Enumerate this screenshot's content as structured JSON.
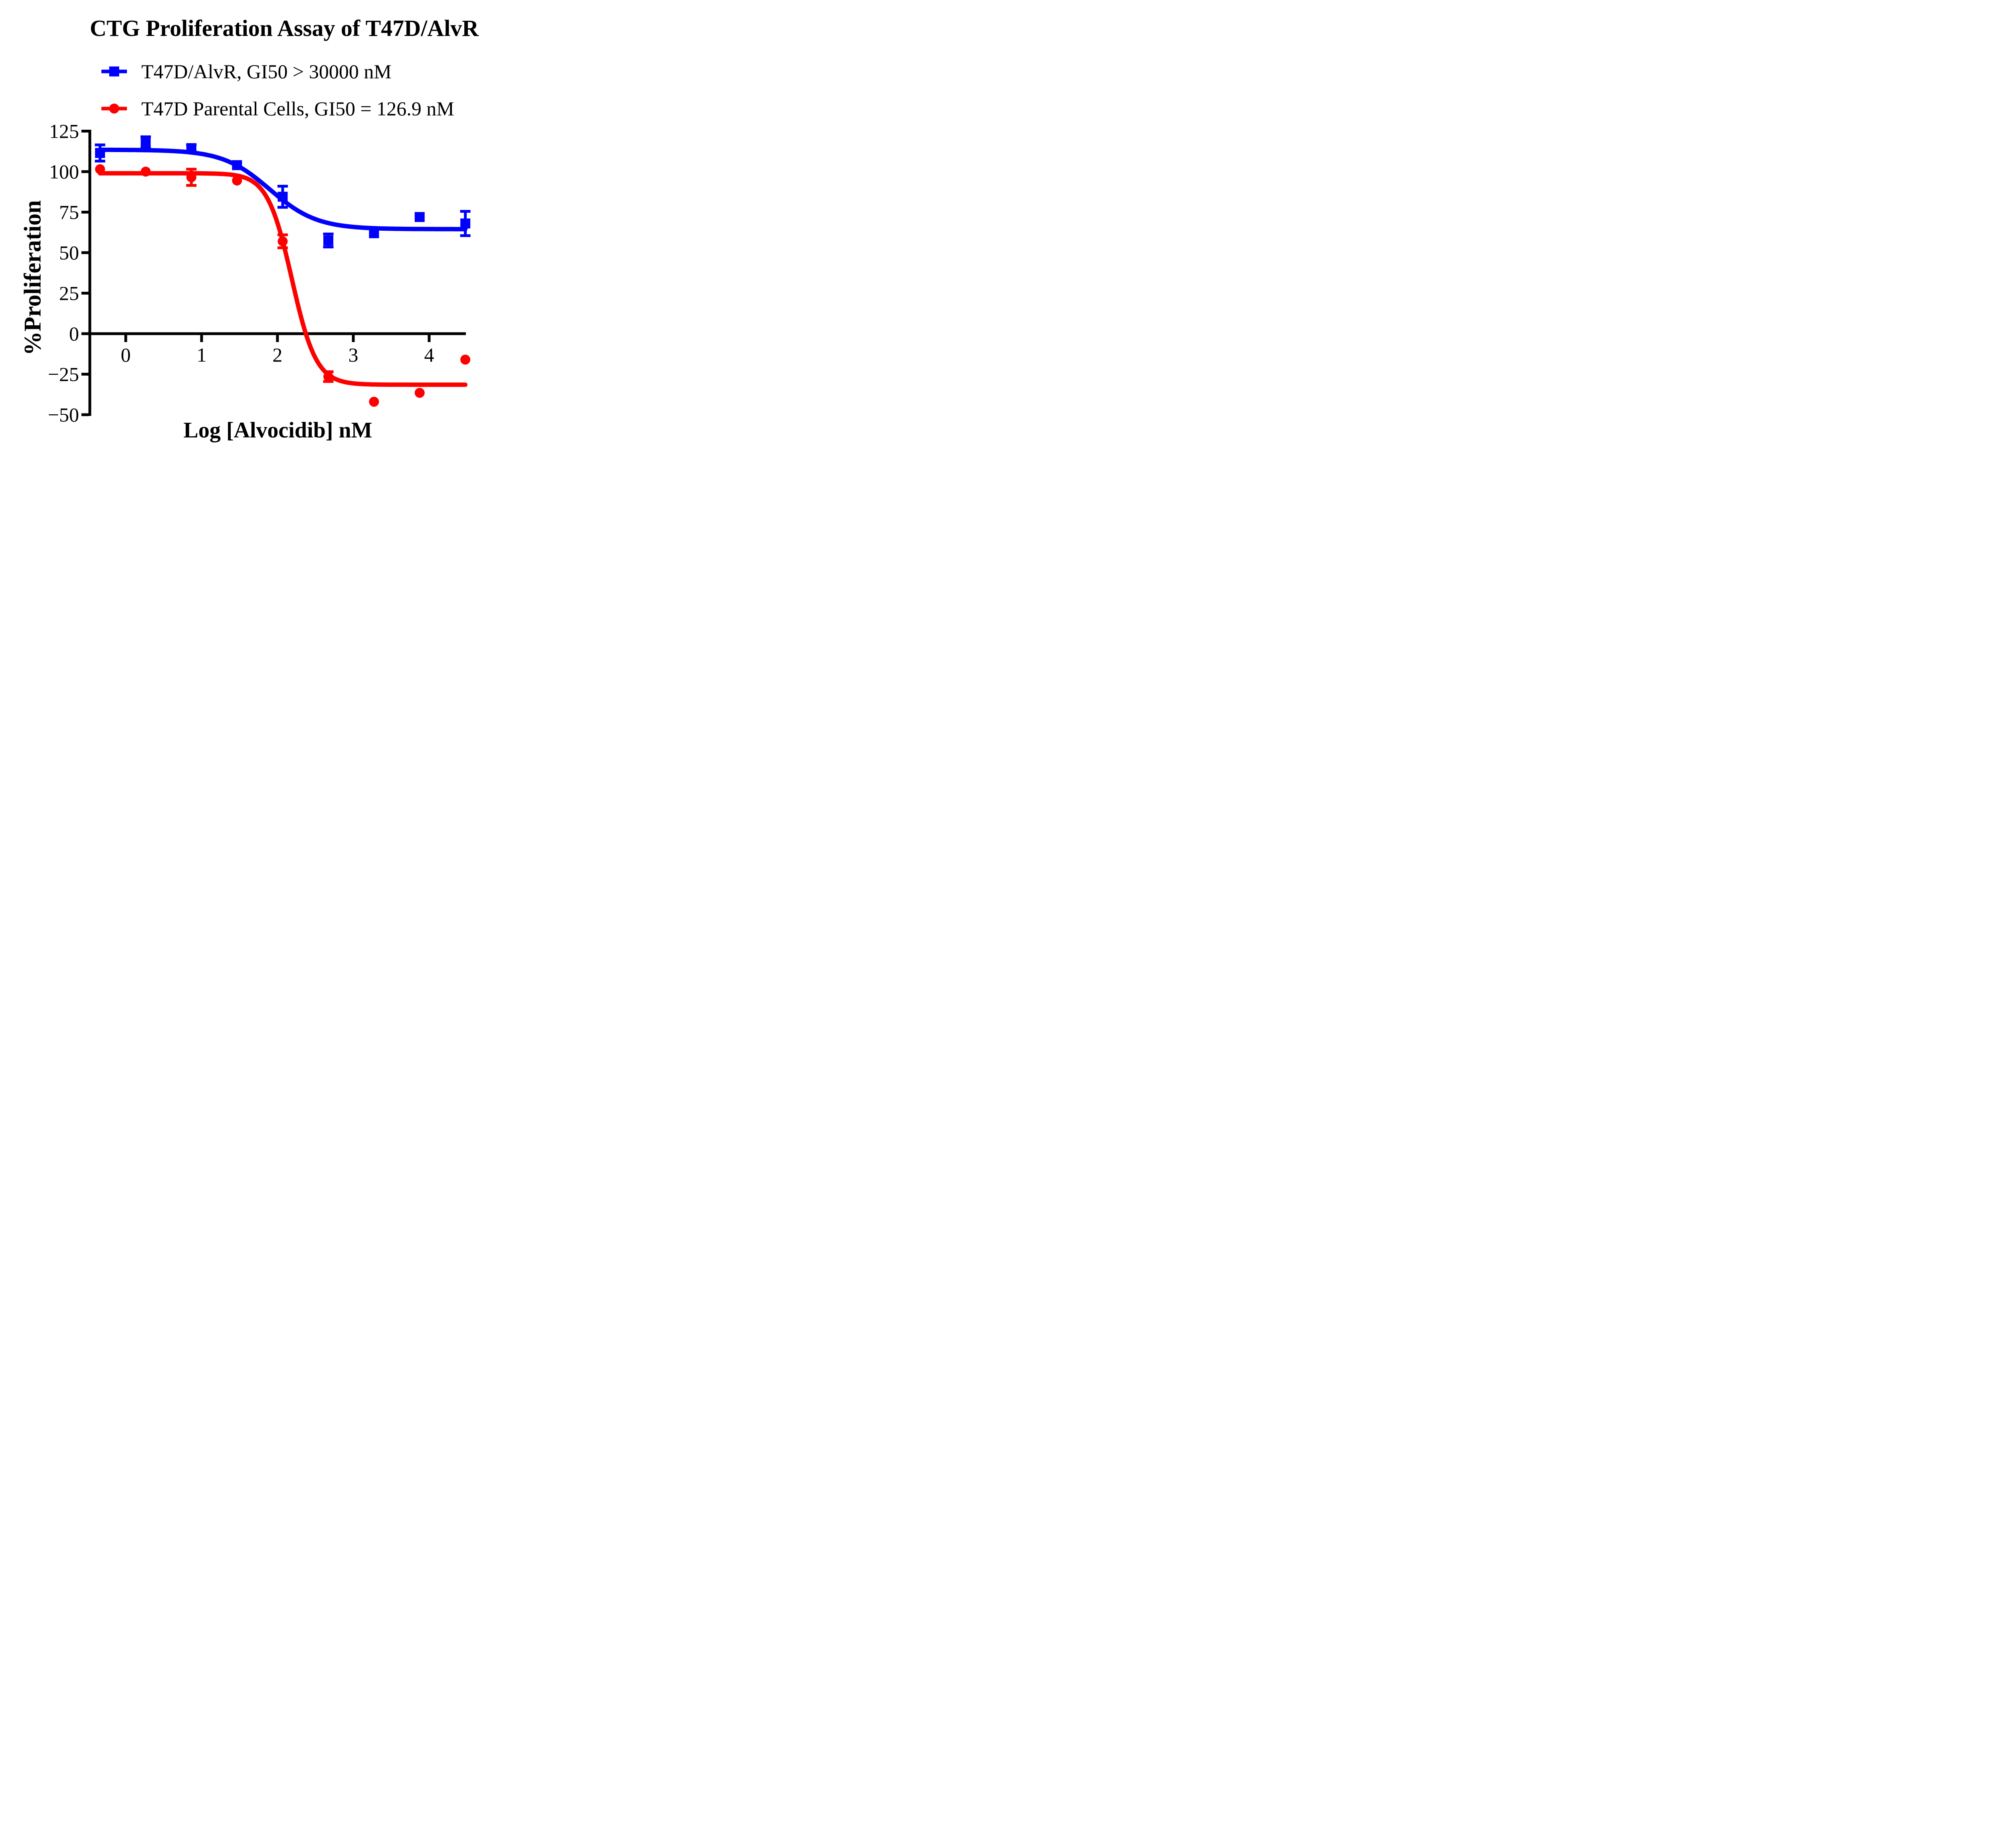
{
  "title": "CTG Proliferation Assay of T47D/AlvR",
  "legend": {
    "items": [
      {
        "label": "T47D/AlvR, GI50 > 30000 nM",
        "color": "#0000FF",
        "marker": "square"
      },
      {
        "label": "T47D Parental Cells, GI50 = 126.9 nM",
        "color": "#FF0000",
        "marker": "circle"
      }
    ]
  },
  "chart_data": {
    "type": "scatter",
    "title": "CTG Proliferation Assay of T47D/AlvR",
    "xlabel": "Log [Alvocidib] nM",
    "ylabel": "%Proliferation",
    "xlim": [
      -0.47,
      4.48
    ],
    "ylim": [
      -50,
      125
    ],
    "grid": false,
    "legend_position": "above-plot-left",
    "x_ticks": [
      0,
      1,
      2,
      3,
      4
    ],
    "x_tick_labels": [
      "0",
      "1",
      "2",
      "3",
      "4"
    ],
    "y_ticks": [
      125,
      100,
      75,
      50,
      25,
      0,
      -25,
      -50
    ],
    "y_tick_labels": [
      "125",
      "100",
      "75",
      "50",
      "25",
      "0",
      "−25",
      "−50"
    ],
    "x": [
      -0.339,
      0.263,
      0.865,
      1.467,
      2.069,
      2.671,
      3.273,
      3.875,
      4.477
    ],
    "series": [
      {
        "name": "T47D/AlvR, GI50 > 30000 nM",
        "color": "#0000FF",
        "marker": "square",
        "values": [
          111.5,
          118,
          114.5,
          104,
          84.5,
          57.5,
          62,
          72,
          68
        ],
        "errors": [
          5,
          3.5,
          2,
          0,
          6.5,
          4,
          0,
          0,
          7.5
        ],
        "fit_curve": {
          "model": "sigmoid_4pl",
          "top": 113.5,
          "bottom": 64.5,
          "log_ec50": 1.9,
          "hill": 1.4
        }
      },
      {
        "name": "T47D Parental Cells, GI50 = 126.9 nM",
        "color": "#FF0000",
        "marker": "circle",
        "values": [
          101.5,
          100,
          96.5,
          94.5,
          57,
          -26.5,
          -42,
          -36.5,
          -16
        ],
        "errors": [
          0,
          0,
          5,
          0,
          4,
          3,
          0,
          0,
          0
        ],
        "fit_curve": {
          "model": "sigmoid_4pl",
          "top": 99,
          "bottom": -31.5,
          "log_ec50": 2.19,
          "hill": 2.7
        }
      }
    ]
  }
}
